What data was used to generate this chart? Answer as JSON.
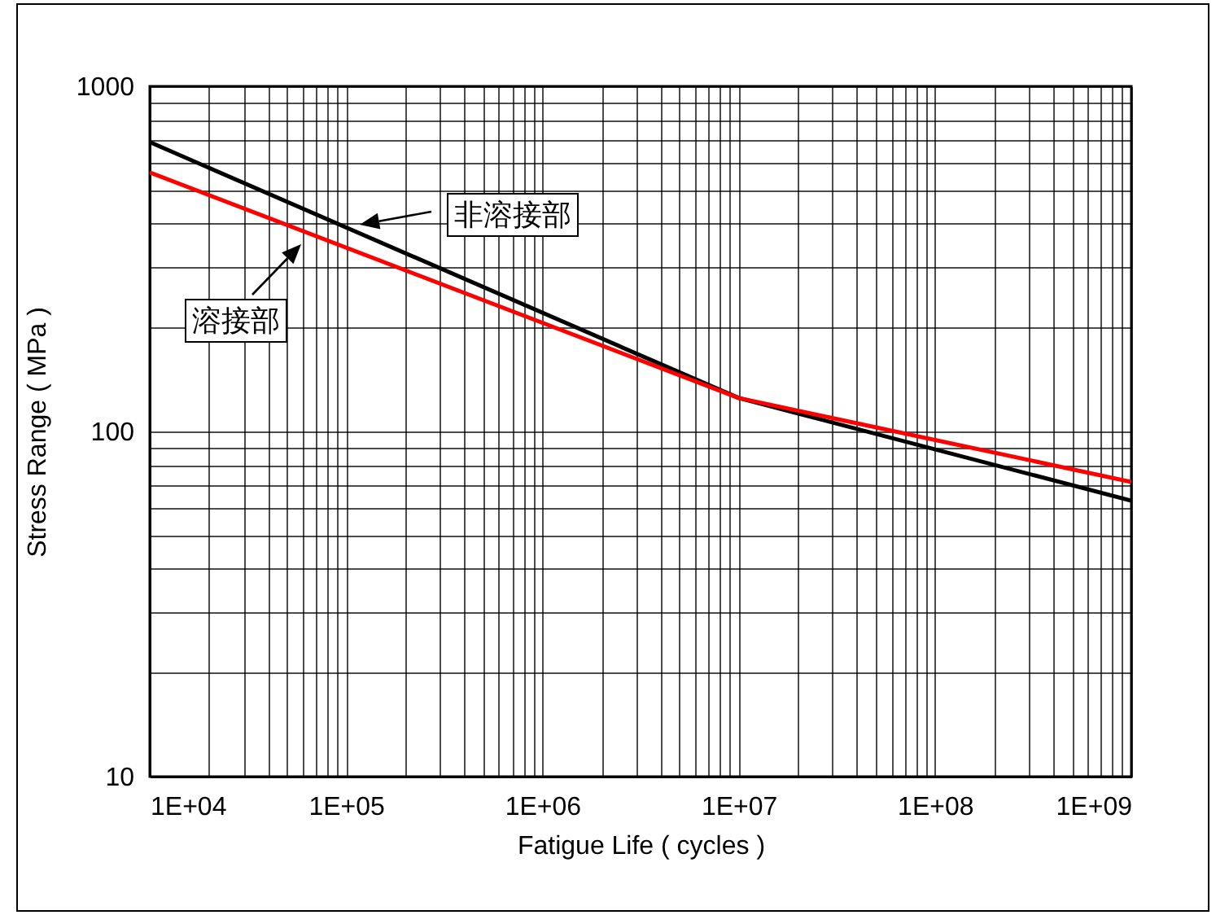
{
  "chart_data": {
    "type": "line",
    "xlabel": "Fatigue Life ( cycles )",
    "ylabel": "Stress Range ( MPa )",
    "log": "xy",
    "grid": true,
    "legend": false,
    "marker": "none",
    "line_style": "solid",
    "x": [
      10000,
      10000000,
      1000000000
    ],
    "series": [
      {
        "color": "#000000",
        "values": [
          689,
          125,
          63
        ]
      },
      {
        "color": "#ff0000",
        "values": [
          563,
          125,
          71.4
        ]
      }
    ],
    "xlim": [
      10000,
      1000000000
    ],
    "ylim": [
      10,
      1000
    ],
    "xticks": [
      {
        "value": 10000,
        "label": "1E+04"
      },
      {
        "value": 20000,
        "label": null
      },
      {
        "value": 30000,
        "label": null
      },
      {
        "value": 40000,
        "label": null
      },
      {
        "value": 50000,
        "label": null
      },
      {
        "value": 60000,
        "label": null
      },
      {
        "value": 70000,
        "label": null
      },
      {
        "value": 80000,
        "label": null
      },
      {
        "value": 90000,
        "label": null
      },
      {
        "value": 100000,
        "label": "1E+05"
      },
      {
        "value": 200000,
        "label": null
      },
      {
        "value": 300000,
        "label": null
      },
      {
        "value": 400000,
        "label": null
      },
      {
        "value": 500000,
        "label": null
      },
      {
        "value": 600000,
        "label": null
      },
      {
        "value": 700000,
        "label": null
      },
      {
        "value": 800000,
        "label": null
      },
      {
        "value": 900000,
        "label": null
      },
      {
        "value": 1000000,
        "label": "1E+06"
      },
      {
        "value": 2000000,
        "label": null
      },
      {
        "value": 3000000,
        "label": null
      },
      {
        "value": 4000000,
        "label": null
      },
      {
        "value": 5000000,
        "label": null
      },
      {
        "value": 6000000,
        "label": null
      },
      {
        "value": 7000000,
        "label": null
      },
      {
        "value": 8000000,
        "label": null
      },
      {
        "value": 9000000,
        "label": null
      },
      {
        "value": 10000000,
        "label": "1E+07"
      },
      {
        "value": 20000000,
        "label": null
      },
      {
        "value": 30000000,
        "label": null
      },
      {
        "value": 40000000,
        "label": null
      },
      {
        "value": 50000000,
        "label": null
      },
      {
        "value": 60000000,
        "label": null
      },
      {
        "value": 70000000,
        "label": null
      },
      {
        "value": 80000000,
        "label": null
      },
      {
        "value": 90000000,
        "label": null
      },
      {
        "value": 100000000,
        "label": "1E+08"
      },
      {
        "value": 200000000,
        "label": null
      },
      {
        "value": 300000000,
        "label": null
      },
      {
        "value": 400000000,
        "label": null
      },
      {
        "value": 500000000,
        "label": null
      },
      {
        "value": 600000000,
        "label": null
      },
      {
        "value": 700000000,
        "label": null
      },
      {
        "value": 800000000,
        "label": null
      },
      {
        "value": 900000000,
        "label": null
      },
      {
        "value": 1000000000,
        "label": "1E+09"
      }
    ],
    "yticks": [
      10,
      {
        "value": 20,
        "label": null
      },
      {
        "value": 30,
        "label": null
      },
      {
        "value": 40,
        "label": null
      },
      {
        "value": 50,
        "label": null
      },
      {
        "value": 60,
        "label": null
      },
      {
        "value": 70,
        "label": null
      },
      {
        "value": 80,
        "label": null
      },
      {
        "value": 90,
        "label": null
      },
      100,
      {
        "value": 200,
        "label": null
      },
      {
        "value": 300,
        "label": null
      },
      {
        "value": 400,
        "label": null
      },
      {
        "value": 500,
        "label": null
      },
      {
        "value": 600,
        "label": null
      },
      {
        "value": 700,
        "label": null
      },
      {
        "value": 800,
        "label": null
      },
      {
        "value": 900,
        "label": null
      },
      1000
    ],
    "annotations": [
      "非溶接部",
      "溶接部"
    ]
  }
}
